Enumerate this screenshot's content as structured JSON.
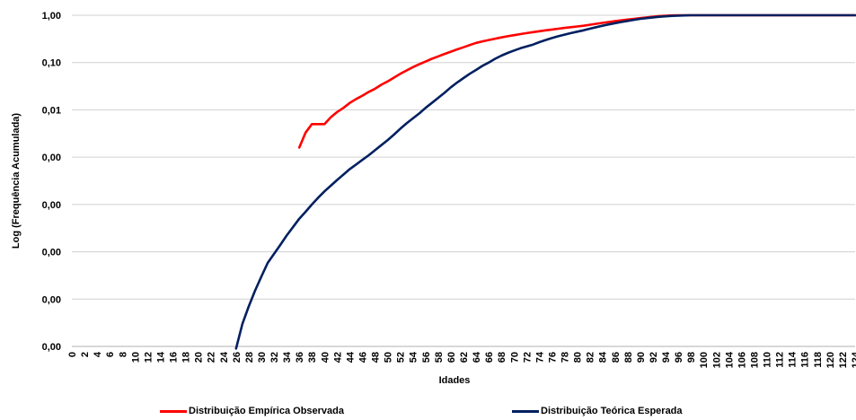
{
  "chart_data": {
    "type": "line",
    "xlabel": "Idades",
    "ylabel": "Log (Frequência Acumulada)",
    "x_categories": [
      "0",
      "2",
      "4",
      "6",
      "8",
      "10",
      "12",
      "14",
      "16",
      "18",
      "20",
      "22",
      "24",
      "26",
      "28",
      "30",
      "32",
      "34",
      "36",
      "38",
      "40",
      "42",
      "44",
      "46",
      "48",
      "50",
      "52",
      "54",
      "56",
      "58",
      "60",
      "62",
      "64",
      "66",
      "68",
      "70",
      "72",
      "74",
      "76",
      "78",
      "80",
      "82",
      "84",
      "86",
      "88",
      "90",
      "92",
      "94",
      "96",
      "98",
      "100",
      "102",
      "104",
      "106",
      "108",
      "110",
      "112",
      "114",
      "116",
      "118",
      "120",
      "122",
      "124"
    ],
    "y_tick_labels": [
      "1,00",
      "0,10",
      "0,01",
      "0,00",
      "0,00",
      "0,00",
      "0,00",
      "0,00"
    ],
    "y_scale": "log",
    "ylim": [
      1e-07,
      1
    ],
    "grid": "horizontal",
    "legend_position": "bottom",
    "series": [
      {
        "name": "Distribuição Empírica Observada",
        "color": "#ff0000",
        "x": [
          36,
          37,
          38,
          39,
          40,
          41,
          42,
          43,
          44,
          45,
          46,
          47,
          48,
          49,
          50,
          51,
          52,
          53,
          54,
          55,
          56,
          57,
          58,
          59,
          60,
          61,
          62,
          63,
          64,
          65,
          66,
          67,
          68,
          69,
          70,
          71,
          72,
          73,
          74,
          75,
          76,
          77,
          78,
          79,
          80,
          81,
          82,
          83,
          84,
          85,
          86,
          87,
          88,
          89,
          90,
          91,
          92,
          93,
          94,
          95,
          96,
          97,
          98,
          99,
          100,
          124
        ],
        "y": [
          0.0016,
          0.0033,
          0.005,
          0.005,
          0.005,
          0.007,
          0.009,
          0.011,
          0.014,
          0.017,
          0.02,
          0.024,
          0.028,
          0.034,
          0.04,
          0.048,
          0.058,
          0.068,
          0.08,
          0.092,
          0.105,
          0.12,
          0.135,
          0.152,
          0.17,
          0.19,
          0.21,
          0.235,
          0.26,
          0.28,
          0.3,
          0.32,
          0.34,
          0.36,
          0.38,
          0.4,
          0.42,
          0.44,
          0.46,
          0.48,
          0.5,
          0.52,
          0.54,
          0.56,
          0.58,
          0.6,
          0.63,
          0.66,
          0.69,
          0.72,
          0.75,
          0.78,
          0.81,
          0.84,
          0.87,
          0.9,
          0.93,
          0.96,
          0.98,
          0.99,
          1.0,
          1.0,
          1.0,
          1.0,
          1.0,
          1.0
        ]
      },
      {
        "name": "Distribuição Teórica Esperada",
        "color": "#002060",
        "x": [
          26,
          27,
          28,
          29,
          30,
          31,
          32,
          33,
          34,
          35,
          36,
          37,
          38,
          39,
          40,
          41,
          42,
          43,
          44,
          45,
          46,
          47,
          48,
          49,
          50,
          51,
          52,
          53,
          54,
          55,
          56,
          57,
          58,
          59,
          60,
          61,
          62,
          63,
          64,
          65,
          66,
          67,
          68,
          69,
          70,
          71,
          72,
          73,
          74,
          75,
          76,
          77,
          78,
          79,
          80,
          81,
          82,
          83,
          84,
          85,
          86,
          87,
          88,
          89,
          90,
          91,
          92,
          93,
          94,
          95,
          96,
          97,
          98,
          99,
          100,
          124
        ],
        "y": [
          9e-08,
          3e-07,
          7e-07,
          1.5e-06,
          3e-06,
          5.8e-06,
          9e-06,
          1.4e-05,
          2.2e-05,
          3.3e-05,
          5e-05,
          7e-05,
          0.0001,
          0.00014,
          0.00019,
          0.00025,
          0.00033,
          0.00043,
          0.00056,
          0.0007,
          0.00088,
          0.0011,
          0.0014,
          0.0018,
          0.0023,
          0.003,
          0.004,
          0.0052,
          0.0066,
          0.0084,
          0.011,
          0.014,
          0.018,
          0.023,
          0.03,
          0.038,
          0.047,
          0.058,
          0.07,
          0.085,
          0.1,
          0.12,
          0.14,
          0.16,
          0.18,
          0.2,
          0.22,
          0.24,
          0.27,
          0.3,
          0.33,
          0.36,
          0.39,
          0.42,
          0.45,
          0.48,
          0.52,
          0.56,
          0.6,
          0.64,
          0.68,
          0.72,
          0.76,
          0.8,
          0.84,
          0.87,
          0.9,
          0.93,
          0.95,
          0.97,
          0.98,
          0.99,
          1.0,
          1.0,
          1.0,
          1.0
        ]
      }
    ]
  }
}
